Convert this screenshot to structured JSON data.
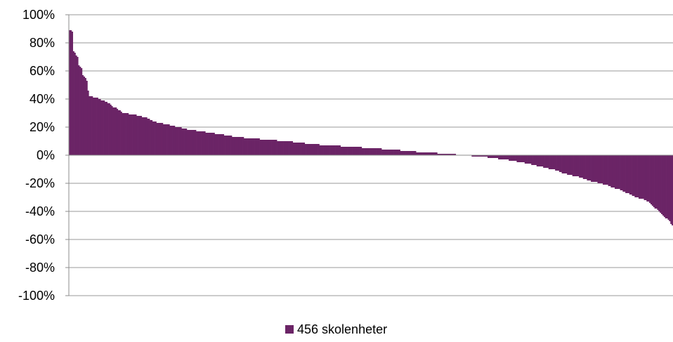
{
  "chart_data": {
    "type": "bar",
    "title": "",
    "xlabel": "",
    "ylabel": "",
    "ylim": [
      -100,
      100
    ],
    "y_ticks": [
      100,
      80,
      60,
      40,
      20,
      0,
      -20,
      -40,
      -60,
      -80,
      -100
    ],
    "y_tick_labels": [
      "100%",
      "80%",
      "60%",
      "40%",
      "20%",
      "0%",
      "-20%",
      "-40%",
      "-60%",
      "-80%",
      "-100%"
    ],
    "grid": true,
    "legend_position": "bottom",
    "series": [
      {
        "name": "456 skolenheter",
        "color": "#6b2466",
        "shape": [
          [
            0,
            89
          ],
          [
            0.005,
            88
          ],
          [
            0.006,
            74
          ],
          [
            0.01,
            72
          ],
          [
            0.013,
            70
          ],
          [
            0.016,
            63
          ],
          [
            0.02,
            62
          ],
          [
            0.021,
            58
          ],
          [
            0.026,
            55
          ],
          [
            0.029,
            53
          ],
          [
            0.031,
            45
          ],
          [
            0.033,
            42
          ],
          [
            0.045,
            41
          ],
          [
            0.05,
            40
          ],
          [
            0.055,
            39
          ],
          [
            0.06,
            38
          ],
          [
            0.065,
            37
          ],
          [
            0.07,
            35
          ],
          [
            0.075,
            34
          ],
          [
            0.08,
            33
          ],
          [
            0.085,
            31
          ],
          [
            0.09,
            30
          ],
          [
            0.105,
            29
          ],
          [
            0.115,
            28
          ],
          [
            0.125,
            27
          ],
          [
            0.13,
            26
          ],
          [
            0.135,
            25
          ],
          [
            0.14,
            24
          ],
          [
            0.15,
            23
          ],
          [
            0.16,
            22
          ],
          [
            0.17,
            21
          ],
          [
            0.18,
            20
          ],
          [
            0.19,
            19
          ],
          [
            0.2,
            18
          ],
          [
            0.22,
            17
          ],
          [
            0.23,
            16
          ],
          [
            0.25,
            15
          ],
          [
            0.26,
            14
          ],
          [
            0.28,
            13
          ],
          [
            0.3,
            12
          ],
          [
            0.33,
            11
          ],
          [
            0.36,
            10
          ],
          [
            0.38,
            9
          ],
          [
            0.4,
            8
          ],
          [
            0.43,
            7
          ],
          [
            0.47,
            6
          ],
          [
            0.5,
            5
          ],
          [
            0.535,
            4
          ],
          [
            0.56,
            3
          ],
          [
            0.59,
            2
          ],
          [
            0.63,
            1
          ],
          [
            0.65,
            0
          ],
          [
            0.685,
            -1
          ],
          [
            0.7,
            -2
          ],
          [
            0.72,
            -3
          ],
          [
            0.735,
            -4
          ],
          [
            0.75,
            -5
          ],
          [
            0.76,
            -6
          ],
          [
            0.77,
            -7
          ],
          [
            0.78,
            -8
          ],
          [
            0.79,
            -9
          ],
          [
            0.8,
            -10
          ],
          [
            0.81,
            -11
          ],
          [
            0.82,
            -13
          ],
          [
            0.83,
            -14
          ],
          [
            0.84,
            -15
          ],
          [
            0.85,
            -16
          ],
          [
            0.86,
            -18
          ],
          [
            0.87,
            -19
          ],
          [
            0.88,
            -20
          ],
          [
            0.89,
            -21
          ],
          [
            0.9,
            -23
          ],
          [
            0.91,
            -24
          ],
          [
            0.92,
            -26
          ],
          [
            0.93,
            -28
          ],
          [
            0.94,
            -30
          ],
          [
            0.95,
            -31
          ],
          [
            0.96,
            -33
          ],
          [
            0.965,
            -35
          ],
          [
            0.97,
            -37
          ],
          [
            0.975,
            -39
          ],
          [
            0.98,
            -41
          ],
          [
            0.985,
            -43
          ],
          [
            0.99,
            -45
          ],
          [
            0.995,
            -47
          ],
          [
            1.0,
            -50
          ]
        ]
      }
    ],
    "count": 456
  }
}
